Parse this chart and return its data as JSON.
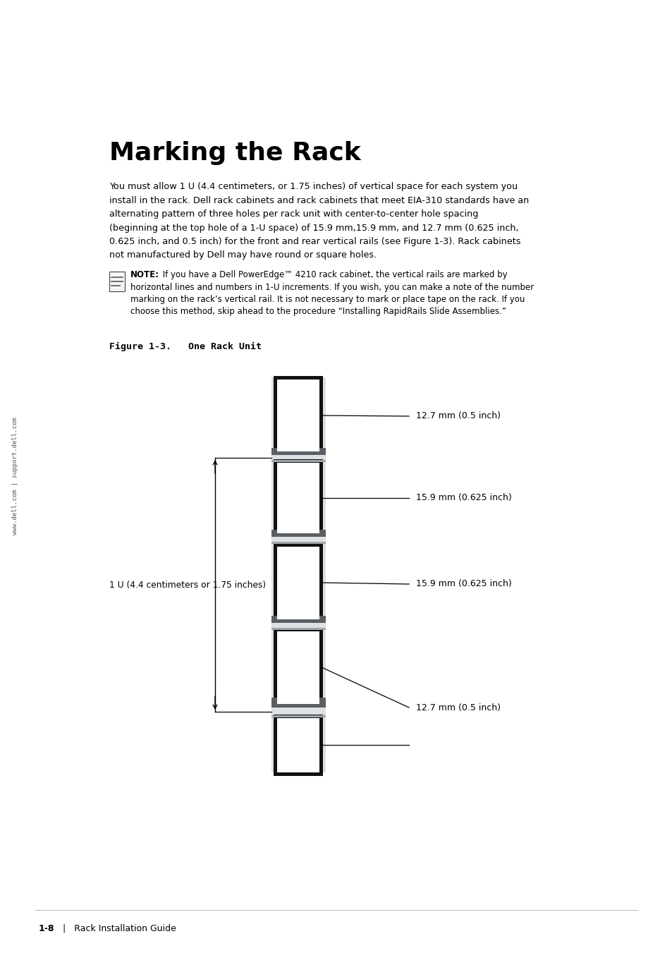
{
  "title": "Marking the Rack",
  "body_text_lines": [
    "You must allow 1 U (4.4 centimeters, or 1.75 inches) of vertical space for each system you",
    "install in the rack. Dell rack cabinets and rack cabinets that meet EIA-310 standards have an",
    "alternating pattern of three holes per rack unit with center-to-center hole spacing",
    "(beginning at the top hole of a 1-U space) of 15.9 mm,15.9 mm, and 12.7 mm (0.625 inch,",
    "0.625 inch, and 0.5 inch) for the front and rear vertical rails (see Figure 1-3). Rack cabinets",
    "not manufactured by Dell may have round or square holes."
  ],
  "note_prefix": "NOTE:",
  "note_lines": [
    " If you have a Dell PowerEdge™ 4210 rack cabinet, the vertical rails are marked by",
    "horizontal lines and numbers in 1-U increments. If you wish, you can make a note of the number",
    "marking on the rack’s vertical rail. It is not necessary to mark or place tape on the rack. If you",
    "choose this method, skip ahead to the procedure “Installing RapidRails Slide Assemblies.”"
  ],
  "figure_caption": "Figure 1-3.   One Rack Unit",
  "sidebar_text": "www.dell.com | support.dell.com",
  "footer_bold": "1-8",
  "footer_rest": "   |   Rack Installation Guide",
  "label_12_7_top": "12.7 mm (0.5 inch)",
  "label_15_9_upper": "15.9 mm (0.625 inch)",
  "label_15_9_lower": "15.9 mm (0.625 inch)",
  "label_12_7_bottom": "12.7 mm (0.5 inch)",
  "label_1u": "1 U (4.4 centimeters or 1.75 inches)",
  "bg_color": "#ffffff",
  "text_color": "#000000",
  "rail_light_color": "#e0e4e8",
  "sep_dark_color": "#606060",
  "sep_light_color": "#b0b0b0",
  "hole_border_color": "#111111",
  "hole_fill_color": "#ffffff"
}
